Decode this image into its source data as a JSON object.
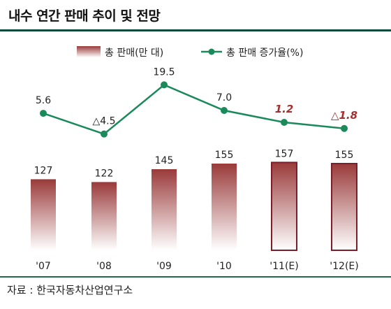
{
  "title": "내수 연간 판매 추이 및 전망",
  "source": "자료 : 한국자동차산업연구소",
  "colors": {
    "bar_top": "#9a3a3a",
    "bar_bottom": "#ffffff",
    "line": "#1a8a5a",
    "forecast_label": "#a33030",
    "rule": "#0a4a3a"
  },
  "chart_data": {
    "type": "bar",
    "title": "",
    "categories": [
      "'07",
      "'08",
      "'09",
      "'10",
      "'11(E)",
      "'12(E)"
    ],
    "series": [
      {
        "name": "총 판매(만 대)",
        "type": "bar",
        "values": [
          127,
          122,
          145,
          155,
          157,
          155
        ],
        "labels": [
          "127",
          "122",
          "145",
          "155",
          "157",
          "155"
        ],
        "forecast": [
          false,
          false,
          false,
          false,
          true,
          true
        ]
      },
      {
        "name": "총 판매 증가율(%)",
        "type": "line",
        "values": [
          5.6,
          -4.5,
          19.5,
          7.0,
          1.2,
          -1.8
        ],
        "labels": [
          "5.6",
          "△4.5",
          "19.5",
          "7.0",
          "1.2",
          "△1.8"
        ],
        "forecast": [
          false,
          false,
          false,
          false,
          true,
          true
        ]
      }
    ],
    "legend": "top",
    "grid": false
  }
}
